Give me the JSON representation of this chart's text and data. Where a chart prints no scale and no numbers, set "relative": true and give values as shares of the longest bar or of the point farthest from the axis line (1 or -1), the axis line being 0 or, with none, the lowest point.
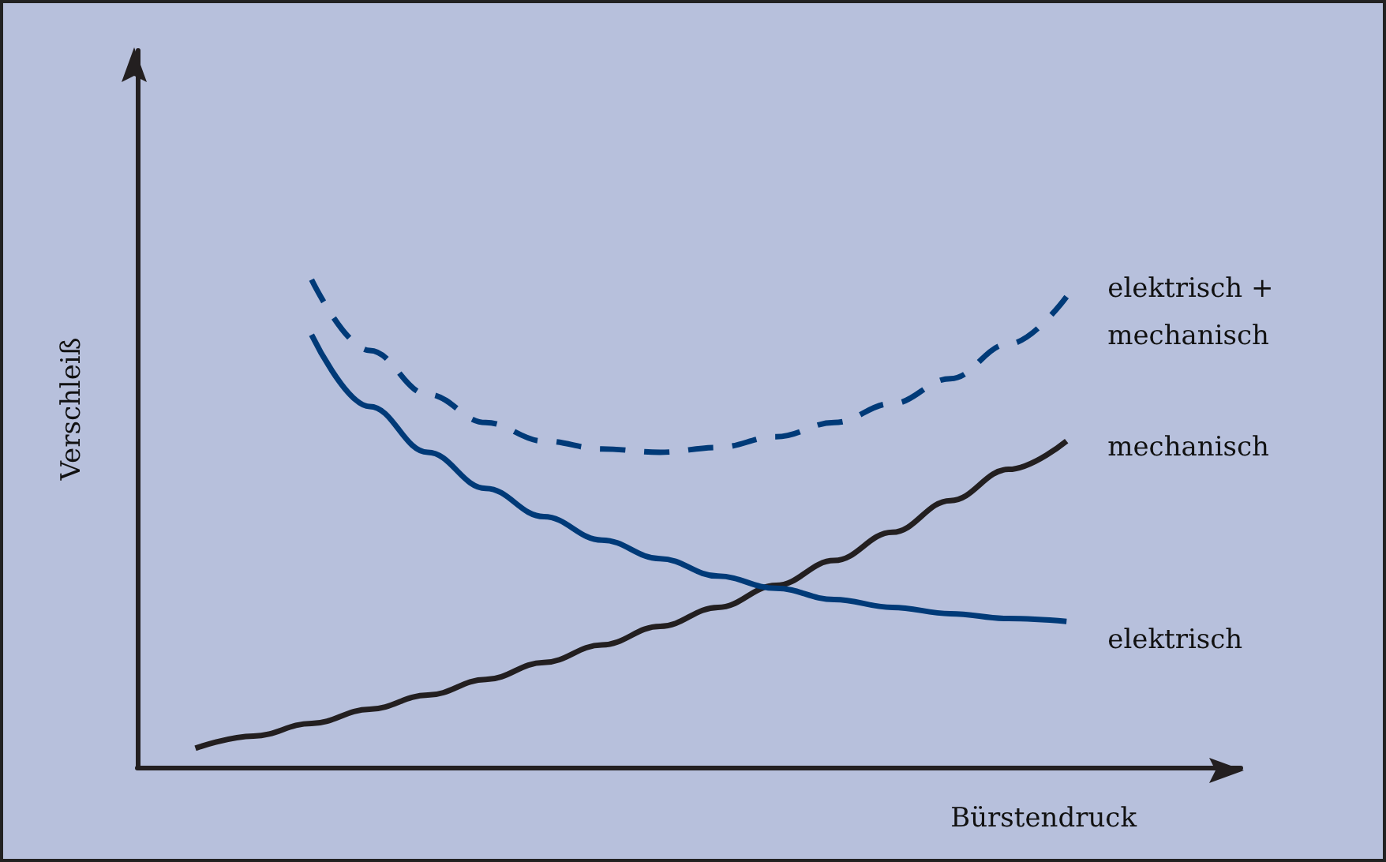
{
  "chart_data": {
    "type": "line",
    "relative": true,
    "xlabel": "Bürstendruck",
    "ylabel": "Verschleiß",
    "legend": false,
    "grid": false,
    "marker": "none",
    "categories": [
      null,
      null,
      null,
      null,
      null,
      null,
      null,
      null,
      null,
      null,
      null,
      null,
      null,
      null,
      null,
      null,
      null,
      null,
      null,
      null
    ],
    "series": [
      {
        "name": "elektrisch + mechanisch",
        "color": "#003a78",
        "line_style": "dashed",
        "values": [
          null,
          null,
          null,
          1.0,
          0.855,
          0.765,
          0.707,
          0.669,
          0.653,
          0.646,
          0.656,
          0.678,
          0.707,
          0.746,
          0.797,
          0.868,
          0.965,
          null,
          null,
          null
        ]
      },
      {
        "name": "mechanisch",
        "color": "#231f20",
        "line_style": "solid",
        "values": [
          null,
          0.039,
          0.064,
          0.09,
          0.119,
          0.148,
          0.18,
          0.215,
          0.251,
          0.289,
          0.328,
          0.373,
          0.424,
          0.482,
          0.547,
          0.611,
          0.669,
          null,
          null,
          null
        ]
      },
      {
        "name": "elektrisch",
        "color": "#003a78",
        "line_style": "solid",
        "values": [
          null,
          null,
          null,
          0.887,
          0.74,
          0.646,
          0.572,
          0.514,
          0.466,
          0.428,
          0.392,
          0.367,
          0.344,
          0.328,
          0.315,
          0.305,
          0.299,
          null,
          null,
          null
        ]
      }
    ]
  }
}
